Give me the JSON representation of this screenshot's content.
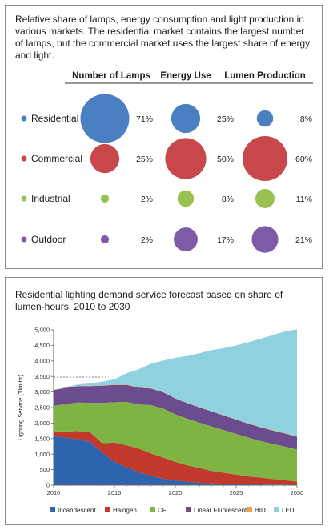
{
  "chart_data": [
    {
      "type": "bubble-table",
      "title": "Relative share of lamps, energy consumption and light production in various markets. The residential market contains the largest number of lamps, but the commercial market uses the largest share of energy and light.",
      "columns": [
        "Number of Lamps",
        "Energy Use",
        "Lumen Production"
      ],
      "rows": [
        {
          "name": "Residential",
          "color": "#4a7fc1",
          "values": [
            71,
            25,
            8
          ],
          "labels": [
            "71%",
            "25%",
            "8%"
          ]
        },
        {
          "name": "Commercial",
          "color": "#c8474a",
          "values": [
            25,
            50,
            60
          ],
          "labels": [
            "25%",
            "50%",
            "60%"
          ]
        },
        {
          "name": "Industrial",
          "color": "#97c150",
          "values": [
            2,
            8,
            11
          ],
          "labels": [
            "2%",
            "8%",
            "11%"
          ]
        },
        {
          "name": "Outdoor",
          "color": "#7f5aa6",
          "values": [
            2,
            17,
            21
          ],
          "labels": [
            "2%",
            "17%",
            "21%"
          ]
        }
      ]
    },
    {
      "type": "area",
      "stacked": true,
      "title": "Residential lighting demand service forecast based on share of lumen-hours, 2010 to 2030",
      "ylabel": "Lighting Service (Tlm-hr)",
      "xlabel": "",
      "xlim": [
        2010,
        2030
      ],
      "ylim": [
        0,
        5000
      ],
      "x_ticks": [
        2010,
        2015,
        2020,
        2025,
        2030
      ],
      "y_ticks": [
        0,
        500,
        1000,
        1500,
        2000,
        2500,
        3000,
        3500,
        4000,
        4500,
        5000
      ],
      "y_tick_labels": [
        "0",
        "500",
        "1,000",
        "1,500",
        "2,000",
        "2,500",
        "3,000",
        "3,500",
        "4,000",
        "4,500",
        "5,000"
      ],
      "reference_line": 3480,
      "grid": false,
      "legend_position": "bottom",
      "x": [
        2010,
        2011,
        2012,
        2013,
        2014,
        2015,
        2016,
        2017,
        2018,
        2019,
        2020,
        2021,
        2022,
        2023,
        2024,
        2025,
        2026,
        2027,
        2028,
        2029,
        2030
      ],
      "series": [
        {
          "name": "Incandescent",
          "color": "#2e63ad",
          "values": [
            1580,
            1530,
            1480,
            1400,
            1050,
            750,
            580,
            420,
            300,
            210,
            150,
            110,
            80,
            60,
            50,
            40,
            30,
            25,
            20,
            15,
            10
          ]
        },
        {
          "name": "Halogen",
          "color": "#c0392b",
          "values": [
            150,
            200,
            260,
            300,
            300,
            620,
            700,
            760,
            720,
            680,
            600,
            530,
            470,
            400,
            350,
            300,
            250,
            220,
            180,
            150,
            100
          ]
        },
        {
          "name": "CFL",
          "color": "#7fb342",
          "values": [
            830,
            880,
            920,
            950,
            1300,
            1300,
            1400,
            1420,
            1560,
            1580,
            1530,
            1500,
            1460,
            1430,
            1370,
            1310,
            1250,
            1180,
            1130,
            1080,
            1040
          ]
        },
        {
          "name": "Linear Fluorescent",
          "color": "#6b4d8f",
          "values": [
            500,
            520,
            530,
            540,
            550,
            560,
            550,
            540,
            530,
            520,
            510,
            500,
            490,
            480,
            470,
            460,
            450,
            440,
            430,
            420,
            410
          ]
        },
        {
          "name": "HID",
          "color": "#f0a04b",
          "values": [
            10,
            10,
            10,
            10,
            10,
            10,
            10,
            10,
            10,
            10,
            10,
            10,
            10,
            10,
            10,
            10,
            10,
            10,
            10,
            10,
            10
          ]
        },
        {
          "name": "LED",
          "color": "#8fd1de",
          "values": [
            0,
            20,
            40,
            80,
            120,
            170,
            360,
            580,
            790,
            1010,
            1300,
            1510,
            1740,
            1970,
            2160,
            2380,
            2610,
            2840,
            3060,
            3270,
            3450
          ]
        }
      ]
    }
  ]
}
